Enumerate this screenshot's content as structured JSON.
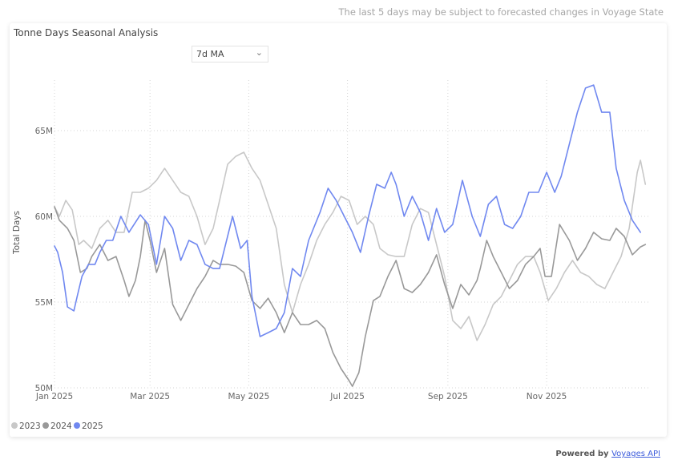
{
  "note": "The last 5 days may be subject to forecasted changes in Voyage State",
  "dropdown": {
    "selected": "7d MA"
  },
  "footer": {
    "prefix": "Powered by",
    "link": "Voyages API"
  },
  "chart_data": {
    "type": "line",
    "title": "Tonne Days Seasonal Analysis",
    "xlabel": "",
    "ylabel": "Total Days",
    "x_unit": "day of year",
    "ylim": [
      50,
      68
    ],
    "xlim": [
      0,
      365
    ],
    "grid": true,
    "legend_position": "bottom-left",
    "y_ticks": [
      {
        "v": 50,
        "label": "50M"
      },
      {
        "v": 55,
        "label": "55M"
      },
      {
        "v": 60,
        "label": "60M"
      },
      {
        "v": 65,
        "label": "65M"
      }
    ],
    "x_ticks": [
      {
        "d": 0,
        "label": "Jan 2025"
      },
      {
        "d": 59,
        "label": "Mar 2025"
      },
      {
        "d": 120,
        "label": "May 2025"
      },
      {
        "d": 181,
        "label": "Jul 2025"
      },
      {
        "d": 243,
        "label": "Sep 2025"
      },
      {
        "d": 304,
        "label": "Nov 2025"
      }
    ],
    "series": [
      {
        "name": "2023",
        "color": "#c8c8c8",
        "points": [
          [
            0,
            60.56
          ],
          [
            3,
            60.0
          ],
          [
            7,
            60.93
          ],
          [
            11,
            60.37
          ],
          [
            15,
            58.36
          ],
          [
            18,
            58.6
          ],
          [
            23,
            58.13
          ],
          [
            28,
            59.3
          ],
          [
            33,
            59.77
          ],
          [
            38,
            59.07
          ],
          [
            43,
            59.07
          ],
          [
            48,
            61.4
          ],
          [
            53,
            61.4
          ],
          [
            58,
            61.64
          ],
          [
            63,
            62.1
          ],
          [
            68,
            62.8
          ],
          [
            73,
            62.1
          ],
          [
            78,
            61.4
          ],
          [
            83,
            61.17
          ],
          [
            88,
            60.0
          ],
          [
            93,
            58.36
          ],
          [
            98,
            59.3
          ],
          [
            102,
            60.93
          ],
          [
            107,
            63.04
          ],
          [
            112,
            63.5
          ],
          [
            117,
            63.74
          ],
          [
            122,
            62.8
          ],
          [
            127,
            62.1
          ],
          [
            132,
            60.7
          ],
          [
            137,
            59.3
          ],
          [
            142,
            56.03
          ],
          [
            147,
            54.39
          ],
          [
            152,
            56.03
          ],
          [
            157,
            57.2
          ],
          [
            162,
            58.6
          ],
          [
            167,
            59.53
          ],
          [
            172,
            60.23
          ],
          [
            177,
            61.17
          ],
          [
            182,
            60.93
          ],
          [
            187,
            59.53
          ],
          [
            192,
            60.0
          ],
          [
            197,
            59.53
          ],
          [
            201,
            58.13
          ],
          [
            206,
            57.76
          ],
          [
            211,
            57.66
          ],
          [
            216,
            57.66
          ],
          [
            221,
            59.53
          ],
          [
            226,
            60.46
          ],
          [
            231,
            60.23
          ],
          [
            236,
            58.36
          ],
          [
            241,
            56.5
          ],
          [
            246,
            53.93
          ],
          [
            251,
            53.46
          ],
          [
            256,
            54.16
          ],
          [
            261,
            52.76
          ],
          [
            266,
            53.69
          ],
          [
            271,
            54.86
          ],
          [
            276,
            55.33
          ],
          [
            281,
            56.26
          ],
          [
            286,
            57.2
          ],
          [
            291,
            57.66
          ],
          [
            296,
            57.66
          ],
          [
            300,
            56.73
          ],
          [
            305,
            55.09
          ],
          [
            310,
            55.79
          ],
          [
            315,
            56.73
          ],
          [
            320,
            57.43
          ],
          [
            325,
            56.73
          ],
          [
            330,
            56.5
          ],
          [
            335,
            56.03
          ],
          [
            340,
            55.79
          ],
          [
            345,
            56.73
          ],
          [
            350,
            57.66
          ],
          [
            355,
            59.3
          ],
          [
            360,
            62.57
          ],
          [
            362,
            63.27
          ],
          [
            365,
            61.87
          ]
        ]
      },
      {
        "name": "2024",
        "color": "#999999",
        "points": [
          [
            0,
            60.56
          ],
          [
            3,
            59.77
          ],
          [
            8,
            59.3
          ],
          [
            12,
            58.6
          ],
          [
            16,
            56.73
          ],
          [
            20,
            56.96
          ],
          [
            23,
            57.66
          ],
          [
            28,
            58.36
          ],
          [
            33,
            57.43
          ],
          [
            38,
            57.66
          ],
          [
            43,
            56.26
          ],
          [
            46,
            55.33
          ],
          [
            50,
            56.26
          ],
          [
            53,
            57.66
          ],
          [
            56,
            59.77
          ],
          [
            59,
            58.6
          ],
          [
            63,
            56.73
          ],
          [
            68,
            58.13
          ],
          [
            73,
            54.86
          ],
          [
            78,
            53.93
          ],
          [
            83,
            54.86
          ],
          [
            88,
            55.79
          ],
          [
            93,
            56.5
          ],
          [
            98,
            57.43
          ],
          [
            102,
            57.2
          ],
          [
            107,
            57.2
          ],
          [
            112,
            57.1
          ],
          [
            117,
            56.73
          ],
          [
            122,
            55.09
          ],
          [
            127,
            54.63
          ],
          [
            132,
            55.23
          ],
          [
            137,
            54.39
          ],
          [
            142,
            53.22
          ],
          [
            147,
            54.39
          ],
          [
            152,
            53.69
          ],
          [
            157,
            53.69
          ],
          [
            162,
            53.93
          ],
          [
            167,
            53.46
          ],
          [
            172,
            52.06
          ],
          [
            177,
            51.12
          ],
          [
            182,
            50.42
          ],
          [
            184,
            50.09
          ],
          [
            188,
            50.89
          ],
          [
            192,
            52.99
          ],
          [
            197,
            55.09
          ],
          [
            201,
            55.33
          ],
          [
            206,
            56.5
          ],
          [
            211,
            57.43
          ],
          [
            216,
            55.79
          ],
          [
            221,
            55.56
          ],
          [
            226,
            56.03
          ],
          [
            231,
            56.73
          ],
          [
            236,
            57.76
          ],
          [
            241,
            56.03
          ],
          [
            246,
            54.63
          ],
          [
            251,
            56.03
          ],
          [
            256,
            55.42
          ],
          [
            261,
            56.26
          ],
          [
            263,
            56.96
          ],
          [
            267,
            58.6
          ],
          [
            271,
            57.66
          ],
          [
            276,
            56.73
          ],
          [
            281,
            55.79
          ],
          [
            286,
            56.26
          ],
          [
            291,
            57.2
          ],
          [
            296,
            57.66
          ],
          [
            300,
            58.13
          ],
          [
            303,
            56.5
          ],
          [
            307,
            56.5
          ],
          [
            312,
            59.53
          ],
          [
            318,
            58.6
          ],
          [
            323,
            57.43
          ],
          [
            328,
            58.13
          ],
          [
            333,
            59.07
          ],
          [
            338,
            58.69
          ],
          [
            343,
            58.6
          ],
          [
            347,
            59.3
          ],
          [
            352,
            58.83
          ],
          [
            357,
            57.76
          ],
          [
            362,
            58.22
          ],
          [
            365,
            58.36
          ]
        ]
      },
      {
        "name": "2025",
        "color": "#7088f0",
        "points": [
          [
            0,
            58.27
          ],
          [
            2,
            57.9
          ],
          [
            5,
            56.73
          ],
          [
            8,
            54.72
          ],
          [
            12,
            54.49
          ],
          [
            14,
            55.33
          ],
          [
            17,
            56.5
          ],
          [
            21,
            57.2
          ],
          [
            25,
            57.2
          ],
          [
            28,
            57.9
          ],
          [
            32,
            58.6
          ],
          [
            36,
            58.6
          ],
          [
            41,
            60.0
          ],
          [
            46,
            59.07
          ],
          [
            53,
            60.09
          ],
          [
            58,
            59.53
          ],
          [
            63,
            57.2
          ],
          [
            68,
            60.0
          ],
          [
            73,
            59.3
          ],
          [
            78,
            57.43
          ],
          [
            83,
            58.6
          ],
          [
            88,
            58.36
          ],
          [
            93,
            57.2
          ],
          [
            98,
            56.96
          ],
          [
            102,
            56.96
          ],
          [
            110,
            60.0
          ],
          [
            115,
            58.13
          ],
          [
            119,
            58.6
          ],
          [
            122,
            55.33
          ],
          [
            127,
            52.99
          ],
          [
            132,
            53.22
          ],
          [
            137,
            53.46
          ],
          [
            142,
            54.39
          ],
          [
            147,
            56.96
          ],
          [
            152,
            56.5
          ],
          [
            157,
            58.6
          ],
          [
            164,
            60.23
          ],
          [
            169,
            61.64
          ],
          [
            174,
            60.93
          ],
          [
            179,
            60.0
          ],
          [
            184,
            59.07
          ],
          [
            189,
            57.9
          ],
          [
            194,
            60.0
          ],
          [
            199,
            61.87
          ],
          [
            204,
            61.64
          ],
          [
            208,
            62.57
          ],
          [
            211,
            61.87
          ],
          [
            216,
            60.0
          ],
          [
            221,
            61.17
          ],
          [
            226,
            60.23
          ],
          [
            231,
            58.6
          ],
          [
            236,
            60.46
          ],
          [
            241,
            59.07
          ],
          [
            246,
            59.53
          ],
          [
            252,
            62.1
          ],
          [
            258,
            60.0
          ],
          [
            263,
            58.83
          ],
          [
            268,
            60.7
          ],
          [
            273,
            61.17
          ],
          [
            278,
            59.53
          ],
          [
            283,
            59.3
          ],
          [
            288,
            60.0
          ],
          [
            293,
            61.4
          ],
          [
            299,
            61.4
          ],
          [
            304,
            62.57
          ],
          [
            309,
            61.4
          ],
          [
            313,
            62.34
          ],
          [
            318,
            64.21
          ],
          [
            323,
            66.07
          ],
          [
            328,
            67.48
          ],
          [
            333,
            67.66
          ],
          [
            338,
            66.07
          ],
          [
            343,
            66.07
          ],
          [
            347,
            62.8
          ],
          [
            352,
            60.93
          ],
          [
            357,
            59.77
          ],
          [
            362,
            59.07
          ]
        ]
      }
    ]
  }
}
